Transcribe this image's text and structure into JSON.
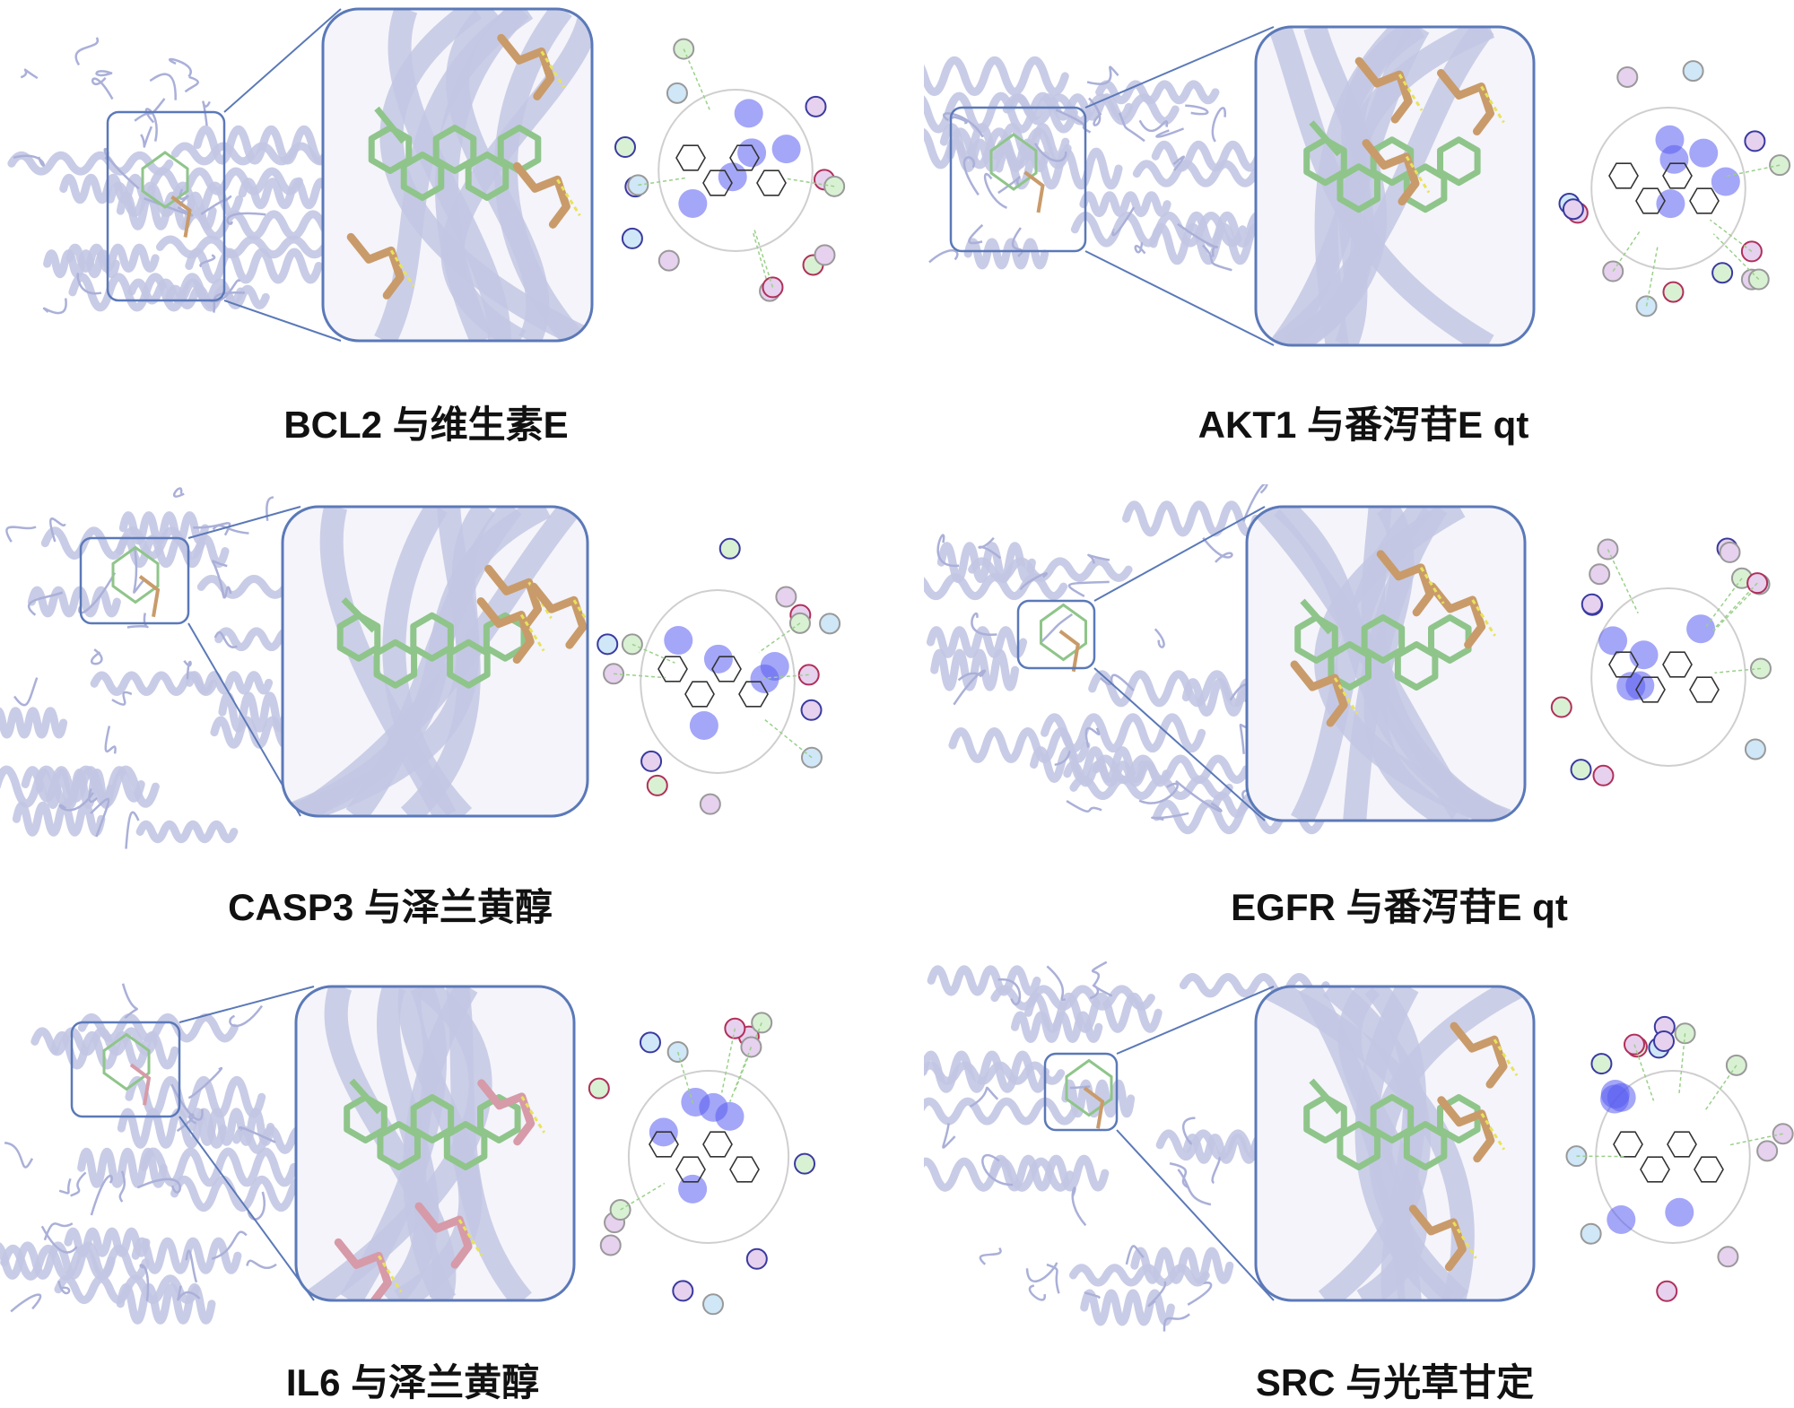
{
  "figure": {
    "panels": [
      {
        "id": "bcl2",
        "caption": "BCL2 与维生素E",
        "sticks": "tan"
      },
      {
        "id": "akt1",
        "caption": "AKT1 与番泻苷E qt",
        "sticks": "tan"
      },
      {
        "id": "casp3",
        "caption": "CASP3 与泽兰黄醇",
        "sticks": "tan"
      },
      {
        "id": "egfr",
        "caption": "EGFR 与番泻苷E qt",
        "sticks": "tan"
      },
      {
        "id": "il6",
        "caption": "IL6 与泽兰黄醇",
        "sticks": "pink"
      },
      {
        "id": "src",
        "caption": "SRC 与光草甘定",
        "sticks": "tan"
      }
    ],
    "colors": {
      "frame": "#5b79b8",
      "ribbon": "#c3c7e3",
      "ligand": "#8fc58a",
      "residue_tan": "#c99b6a",
      "residue_pink": "#d79aa8",
      "hbond": "#e8e35a",
      "glow": "#5a5cf0"
    }
  }
}
